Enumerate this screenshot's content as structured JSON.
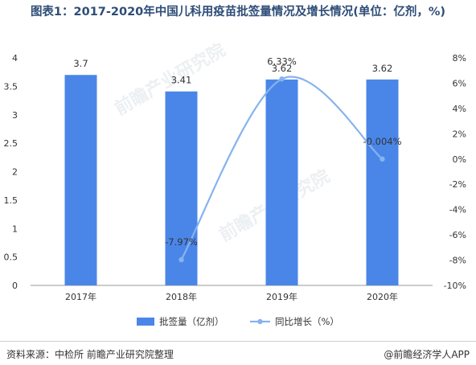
{
  "title": "图表1：2017-2020年中国儿科用疫苗批签量情况及增长情况(单位：亿剂，%)",
  "footer": {
    "source": "资料来源：中检所 前瞻产业研究院整理",
    "brand": "@前瞻经济学人APP"
  },
  "watermark": "前瞻产业研究院",
  "colors": {
    "bar": "#4a86e8",
    "line": "#86b3ee",
    "title": "#2e4d77"
  },
  "chart_data": {
    "type": "bar",
    "categories": [
      "2017年",
      "2018年",
      "2019年",
      "2020年"
    ],
    "series": [
      {
        "name": "批签量（亿剂）",
        "type": "bar",
        "axis": "left",
        "values": [
          3.7,
          3.41,
          3.62,
          3.62
        ],
        "labels": [
          "3.7",
          "3.41",
          "3.62",
          "3.62"
        ]
      },
      {
        "name": "同比增长（%）",
        "type": "line",
        "axis": "right",
        "values": [
          null,
          -7.97,
          6.33,
          -0.004
        ],
        "labels": [
          "",
          "-7.97%",
          "6.33%",
          "-0.004%"
        ]
      }
    ],
    "y_left": {
      "min": 0,
      "max": 4,
      "step": 0.5,
      "ticks": [
        "0",
        "0.5",
        "1",
        "1.5",
        "2",
        "2.5",
        "3",
        "3.5",
        "4"
      ]
    },
    "y_right": {
      "min": -10,
      "max": 8,
      "step": 2,
      "ticks": [
        "-10%",
        "-8%",
        "-6%",
        "-4%",
        "-2%",
        "0%",
        "2%",
        "4%",
        "6%",
        "8%"
      ]
    },
    "legend_position": "bottom",
    "grid": false
  }
}
